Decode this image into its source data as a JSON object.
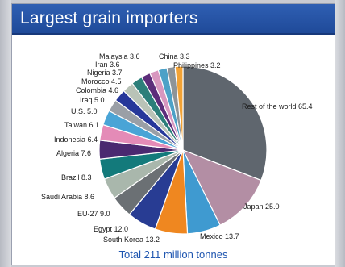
{
  "header": {
    "title": "Largest grain importers"
  },
  "footer": {
    "total": "Total 211 million tonnes"
  },
  "chart_data": {
    "type": "pie",
    "title": "Largest grain importers",
    "total_label": "Total 211 million tonnes",
    "slices": [
      {
        "label": "Rest of the world",
        "value": 65.4,
        "color": "#5f666e"
      },
      {
        "label": "Japan",
        "value": 25.0,
        "color": "#b38ea4"
      },
      {
        "label": "Mexico",
        "value": 13.7,
        "color": "#3f9ad0"
      },
      {
        "label": "South Korea",
        "value": 13.2,
        "color": "#ef8720"
      },
      {
        "label": "Egypt",
        "value": 12.0,
        "color": "#283c93"
      },
      {
        "label": "EU-27",
        "value": 9.0,
        "color": "#6b7074"
      },
      {
        "label": "Saudi Arabia",
        "value": 8.6,
        "color": "#a9b7ac"
      },
      {
        "label": "Brazil",
        "value": 8.3,
        "color": "#137a7b"
      },
      {
        "label": "Algeria",
        "value": 7.6,
        "color": "#4a2970"
      },
      {
        "label": "Indonesia",
        "value": 6.4,
        "color": "#e48bb7"
      },
      {
        "label": "Taiwan",
        "value": 6.1,
        "color": "#49a4d6"
      },
      {
        "label": "U.S.",
        "value": 5.0,
        "color": "#9a9fa6"
      },
      {
        "label": "Iraq",
        "value": 5.0,
        "color": "#26379a"
      },
      {
        "label": "Colombia",
        "value": 4.6,
        "color": "#b9c3b7"
      },
      {
        "label": "Morocco",
        "value": 4.5,
        "color": "#2c7f7a"
      },
      {
        "label": "Nigeria",
        "value": 3.7,
        "color": "#5d2d7a"
      },
      {
        "label": "Iran",
        "value": 3.6,
        "color": "#d897bf"
      },
      {
        "label": "Malaysia",
        "value": 3.6,
        "color": "#4da1c7"
      },
      {
        "label": "China",
        "value": 3.3,
        "color": "#8e9499"
      },
      {
        "label": "Philippines",
        "value": 3.2,
        "color": "#f2a235"
      }
    ]
  }
}
